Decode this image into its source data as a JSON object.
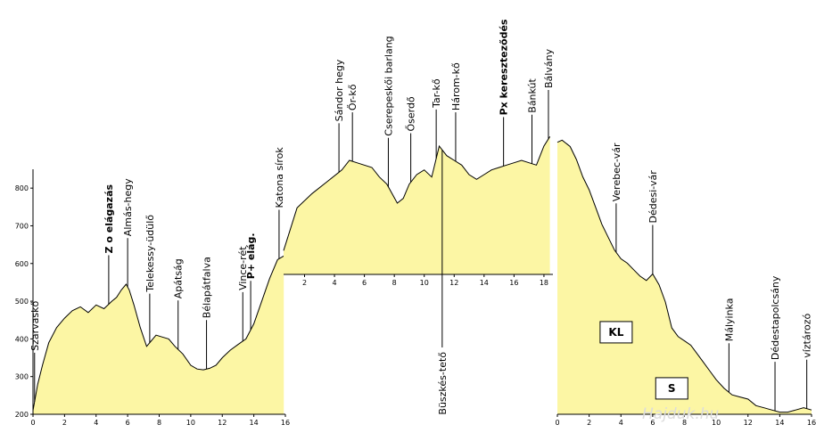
{
  "chart_data": [
    {
      "type": "area",
      "fill_color": "#fcf6a4",
      "line_color": "#000000",
      "xlim": [
        0,
        16
      ],
      "ylim": [
        200,
        850
      ],
      "x_ticks": [
        "0",
        "2",
        "4",
        "6",
        "8",
        "10",
        "12",
        "14",
        "16"
      ],
      "y_ticks": [
        "200",
        "300",
        "400",
        "500",
        "600",
        "700",
        "800"
      ],
      "x": [
        0,
        0.3,
        0.6,
        1,
        1.5,
        2,
        2.5,
        3,
        3.5,
        4,
        4.5,
        5,
        5.3,
        5.6,
        5.9,
        6.1,
        6.4,
        6.8,
        7.2,
        7.5,
        7.8,
        8.2,
        8.6,
        9,
        9.5,
        10,
        10.4,
        10.8,
        11.2,
        11.6,
        12,
        12.5,
        13,
        13.5,
        14,
        14.5,
        15,
        15.5,
        15.9
      ],
      "y": [
        210,
        280,
        330,
        390,
        430,
        455,
        475,
        485,
        470,
        490,
        480,
        500,
        510,
        530,
        545,
        530,
        490,
        430,
        380,
        395,
        410,
        405,
        400,
        380,
        360,
        330,
        320,
        318,
        322,
        330,
        350,
        370,
        385,
        400,
        440,
        500,
        560,
        610,
        620
      ],
      "labels": [
        {
          "text": "Szarvaskő",
          "x": 0.1,
          "bold": false
        },
        {
          "text": "Z o elágazás",
          "x": 4.8,
          "bold": true
        },
        {
          "text": "Almás-hegy",
          "x": 6.0,
          "bold": false
        },
        {
          "text": "Telekessy-üdülő",
          "x": 7.4,
          "bold": false
        },
        {
          "text": "Apátság",
          "x": 9.2,
          "bold": false
        },
        {
          "text": "Bélapátfalva",
          "x": 11.0,
          "bold": false
        },
        {
          "text": "Vince-rét",
          "x": 13.3,
          "bold": false
        },
        {
          "text": "P+ elág.",
          "x": 13.8,
          "bold": true
        },
        {
          "text": "Katona  sírok",
          "x": 15.6,
          "bold": false
        }
      ]
    },
    {
      "type": "area",
      "fill_color": "#fcf6a4",
      "line_color": "#000000",
      "xlim": [
        0.6,
        18.6
      ],
      "ylim": [
        550,
        850
      ],
      "x_ticks": [
        "2",
        "4",
        "6",
        "8",
        "10",
        "12",
        "14",
        "16",
        "18"
      ],
      "x": [
        0.6,
        1.5,
        2.5,
        3.5,
        4.5,
        5,
        5.5,
        6.5,
        7,
        7.5,
        8.2,
        8.6,
        9,
        9.5,
        10,
        10.5,
        11,
        11.5,
        12,
        12.5,
        13,
        13.5,
        14,
        14.5,
        15,
        15.5,
        16,
        16.5,
        17,
        17.5,
        18,
        18.4
      ],
      "y": [
        600,
        690,
        720,
        745,
        770,
        790,
        785,
        775,
        755,
        740,
        700,
        710,
        740,
        760,
        770,
        755,
        820,
        800,
        790,
        780,
        760,
        750,
        760,
        770,
        775,
        780,
        785,
        790,
        785,
        780,
        820,
        840
      ],
      "labels": [
        {
          "text": "Sándor hegy",
          "x": 4.3,
          "bold": false
        },
        {
          "text": "Őr-kő",
          "x": 5.2,
          "bold": false
        },
        {
          "text": "Cserepeskői barlang",
          "x": 7.6,
          "bold": false
        },
        {
          "text": "Őserdő",
          "x": 9.1,
          "bold": false
        },
        {
          "text": "Tar-kő",
          "x": 10.8,
          "bold": false
        },
        {
          "text": "Három-kő",
          "x": 12.1,
          "bold": false
        },
        {
          "text": "Px kereszteződés",
          "x": 15.3,
          "bold": true
        },
        {
          "text": "Bánkút",
          "x": 17.2,
          "bold": false
        },
        {
          "text": "Bálvány",
          "x": 18.3,
          "bold": false
        },
        {
          "text": "Büszkés-tető",
          "x": 11.2,
          "bold": false
        }
      ]
    },
    {
      "type": "area",
      "fill_color": "#fcf6a4",
      "line_color": "#000000",
      "xlim": [
        0,
        16
      ],
      "ylim": [
        200,
        850
      ],
      "x_ticks": [
        "0",
        "2",
        "4",
        "6",
        "8",
        "10",
        "12",
        "14",
        "16"
      ],
      "x": [
        0,
        0.3,
        0.8,
        1.2,
        1.6,
        2,
        2.4,
        2.8,
        3.2,
        3.6,
        4,
        4.4,
        4.8,
        5.2,
        5.6,
        6,
        6.4,
        6.8,
        7.2,
        7.6,
        8,
        8.4,
        8.8,
        9.2,
        9.6,
        10,
        10.5,
        11,
        11.5,
        12,
        12.5,
        13,
        13.5,
        14,
        14.5,
        15,
        15.5,
        16
      ],
      "y": [
        830,
        835,
        820,
        790,
        750,
        720,
        680,
        640,
        610,
        580,
        560,
        550,
        535,
        520,
        510,
        525,
        500,
        460,
        400,
        380,
        370,
        360,
        340,
        320,
        300,
        280,
        260,
        245,
        240,
        235,
        220,
        215,
        210,
        205,
        205,
        210,
        215,
        210
      ],
      "labels": [
        {
          "text": "Verebec-vár",
          "x": 3.7,
          "bold": false
        },
        {
          "text": "Dédesi-vár",
          "x": 6.0,
          "bold": false
        },
        {
          "text": "Mályinka",
          "x": 10.8,
          "bold": false
        },
        {
          "text": "Dédestapolcsány",
          "x": 13.7,
          "bold": false
        },
        {
          "text": "víztározó",
          "x": 15.7,
          "bold": false
        }
      ],
      "markers": [
        {
          "text": "KL",
          "x": 3.7,
          "y": 390
        },
        {
          "text": "S",
          "x": 7.2,
          "y": 260
        }
      ]
    }
  ],
  "watermark": "Hajduk.hu"
}
